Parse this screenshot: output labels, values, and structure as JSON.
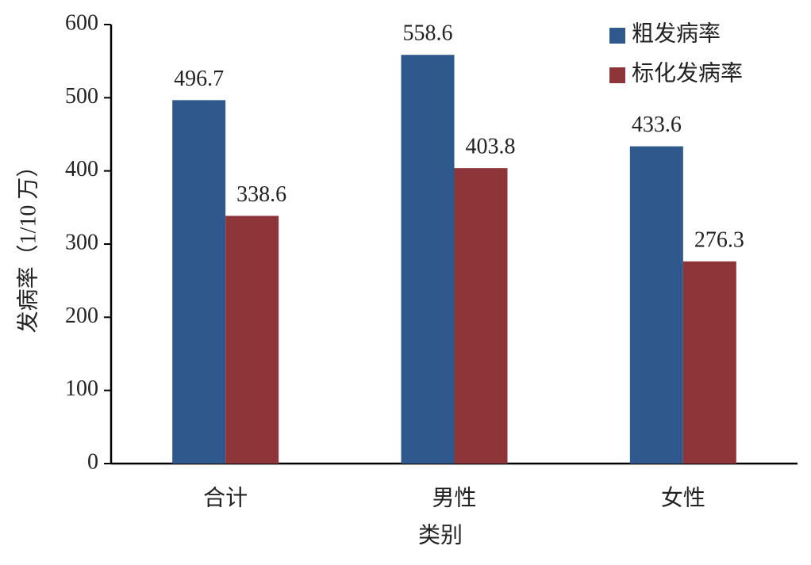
{
  "chart_data": {
    "type": "bar",
    "x_label": "类别",
    "y_label": "发病率（1/10 万）",
    "categories": [
      "合计",
      "男性",
      "女性"
    ],
    "series": [
      {
        "name": "粗发病率",
        "color": "#2f598c",
        "values": [
          496.7,
          558.6,
          433.6
        ]
      },
      {
        "name": "标化发病率",
        "color": "#8e3539",
        "values": [
          338.6,
          403.8,
          276.3
        ]
      }
    ],
    "ylim": [
      0,
      600
    ],
    "yticks": [
      0,
      100,
      200,
      300,
      400,
      500,
      600
    ],
    "grid": false,
    "legend": "top-right"
  }
}
